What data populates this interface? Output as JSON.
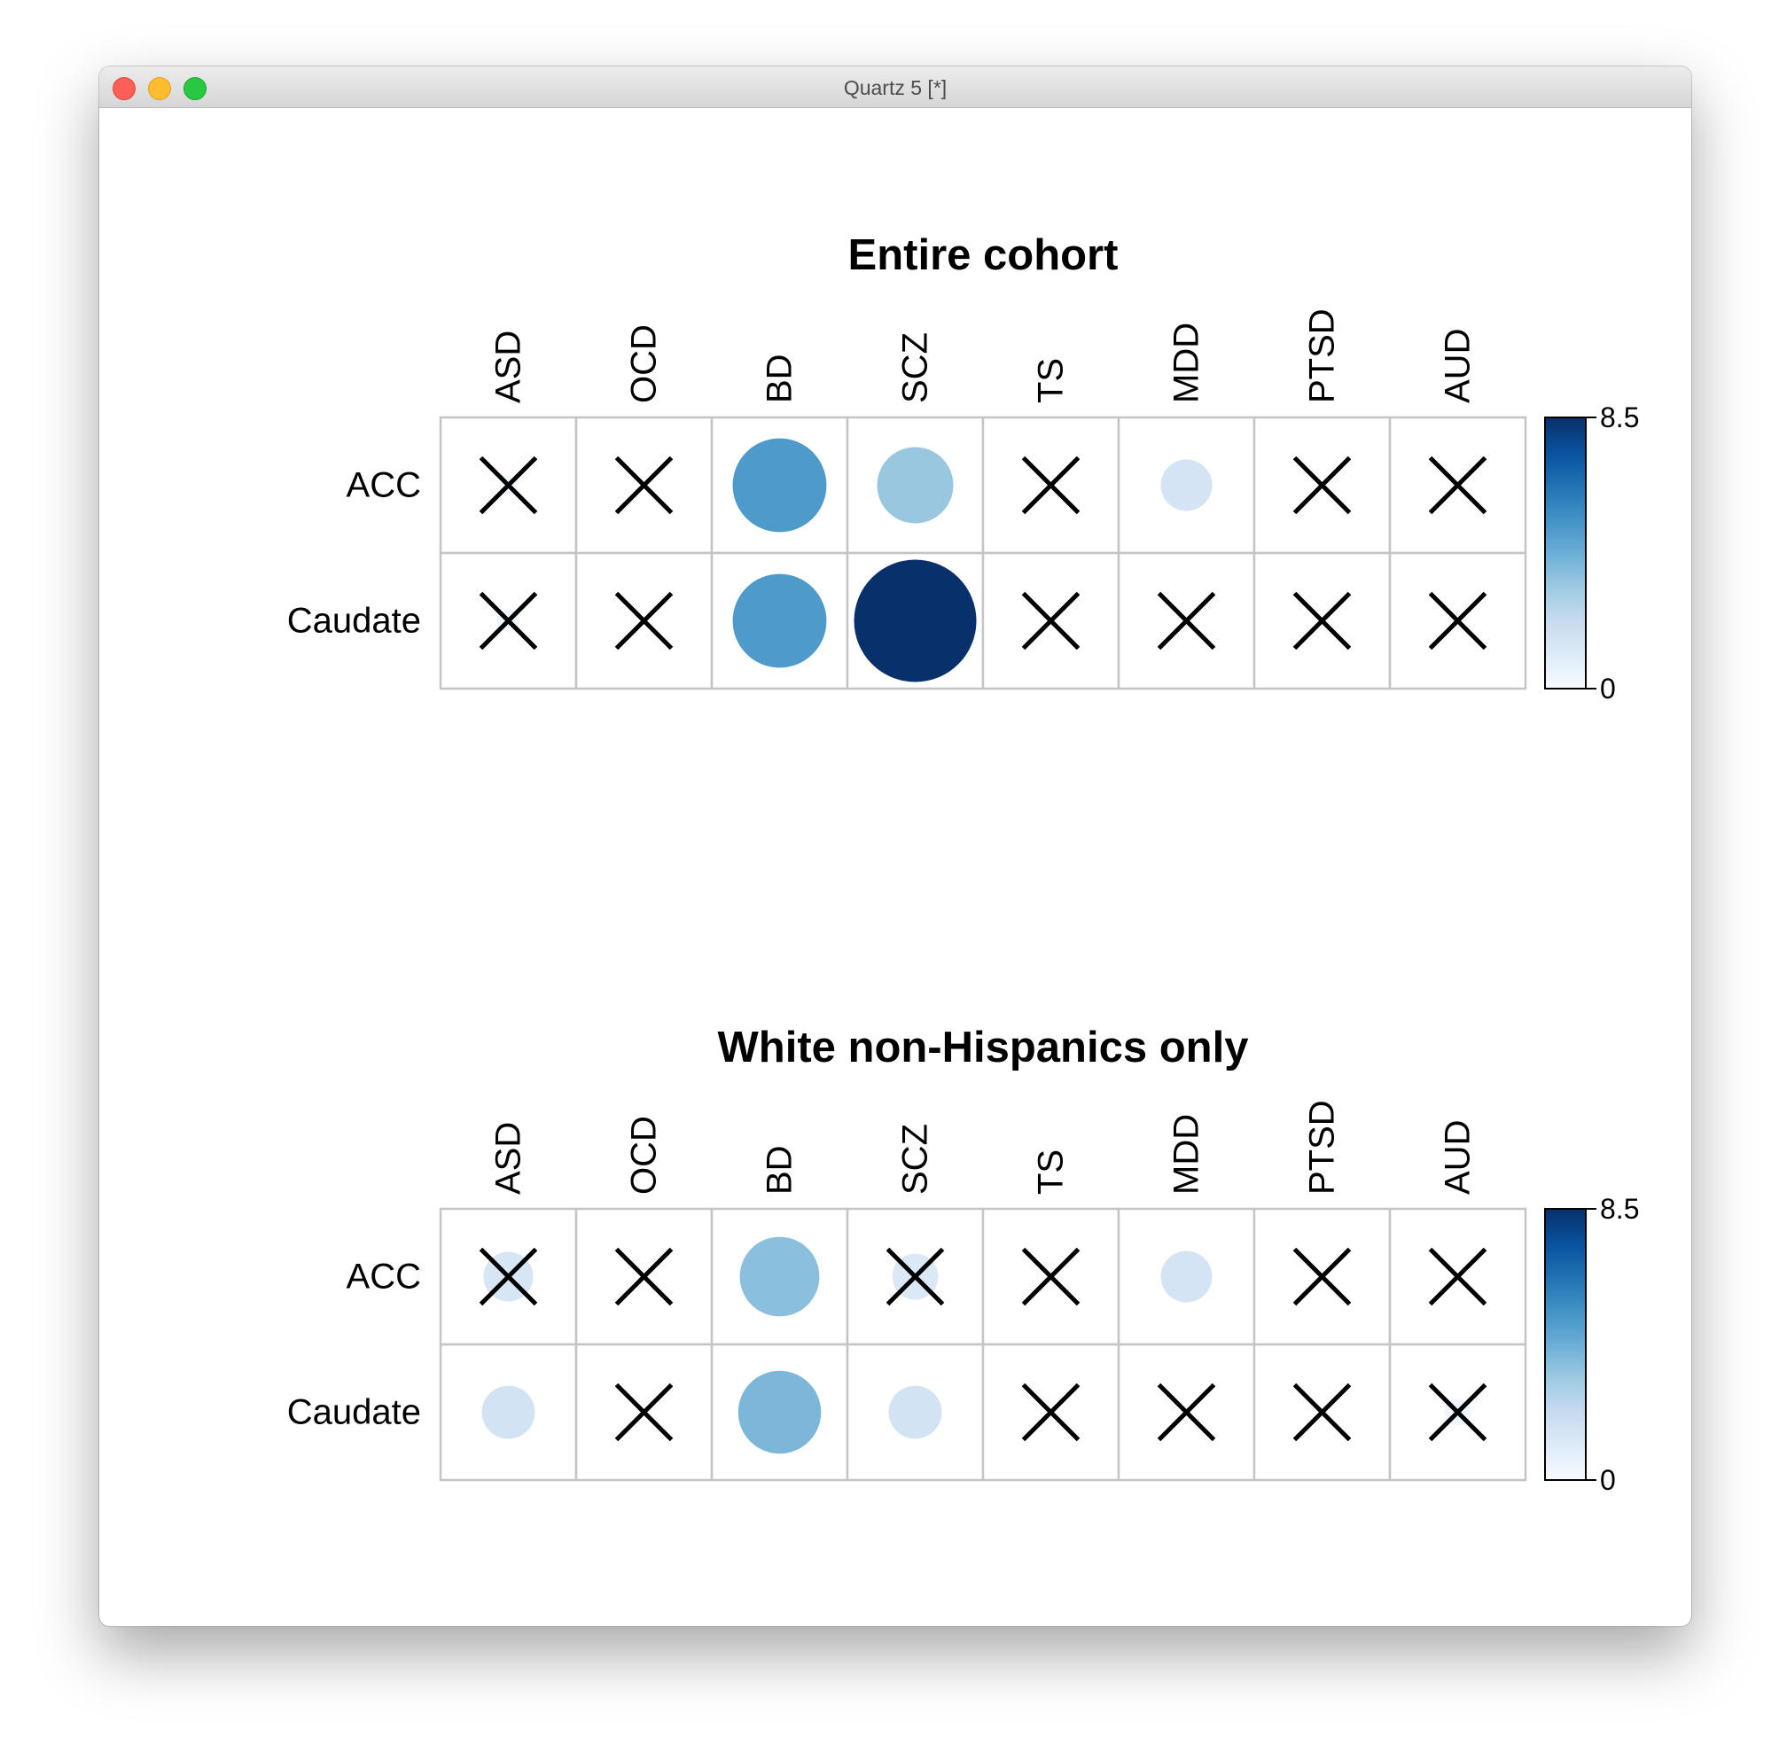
{
  "window": {
    "title": "Quartz 5 [*]",
    "controls": [
      "close",
      "minimize",
      "zoom"
    ]
  },
  "colors": {
    "scale": [
      "#f7fbff",
      "#deebf7",
      "#c6dbef",
      "#9ecae1",
      "#6baed6",
      "#4292c6",
      "#2171b5",
      "#08519c",
      "#08306b"
    ],
    "grid": "#c4c4c4",
    "cross": "#000000"
  },
  "chart_data": [
    {
      "type": "heatmap",
      "subtype": "corrplot-circle",
      "title": "Entire cohort",
      "columns": [
        "ASD",
        "OCD",
        "BD",
        "SCZ",
        "TS",
        "MDD",
        "PTSD",
        "AUD"
      ],
      "rows": [
        "ACC",
        "Caudate"
      ],
      "values": [
        [
          0.2,
          0.0,
          5.0,
          3.3,
          0.0,
          1.5,
          0.0,
          0.0
        ],
        [
          0.3,
          0.0,
          5.0,
          8.5,
          0.0,
          0.0,
          0.0,
          0.2
        ]
      ],
      "crossed": [
        [
          true,
          true,
          false,
          false,
          true,
          false,
          true,
          true
        ],
        [
          true,
          true,
          false,
          false,
          true,
          true,
          true,
          true
        ]
      ],
      "colorbar": {
        "min": 0,
        "max": 8.5,
        "min_label": "0",
        "max_label": "8.5"
      }
    },
    {
      "type": "heatmap",
      "subtype": "corrplot-circle",
      "title": "White non-Hispanics only",
      "columns": [
        "ASD",
        "OCD",
        "BD",
        "SCZ",
        "TS",
        "MDD",
        "PTSD",
        "AUD"
      ],
      "rows": [
        "ACC",
        "Caudate"
      ],
      "values": [
        [
          1.4,
          0.0,
          3.6,
          1.2,
          0.0,
          1.5,
          0.0,
          0.0
        ],
        [
          1.6,
          0.0,
          3.9,
          1.6,
          0.0,
          0.0,
          0.0,
          0.4
        ]
      ],
      "crossed": [
        [
          true,
          true,
          false,
          true,
          true,
          false,
          true,
          true
        ],
        [
          false,
          true,
          false,
          false,
          true,
          true,
          true,
          true
        ]
      ],
      "colorbar": {
        "min": 0,
        "max": 8.5,
        "min_label": "0",
        "max_label": "8.5"
      }
    }
  ]
}
